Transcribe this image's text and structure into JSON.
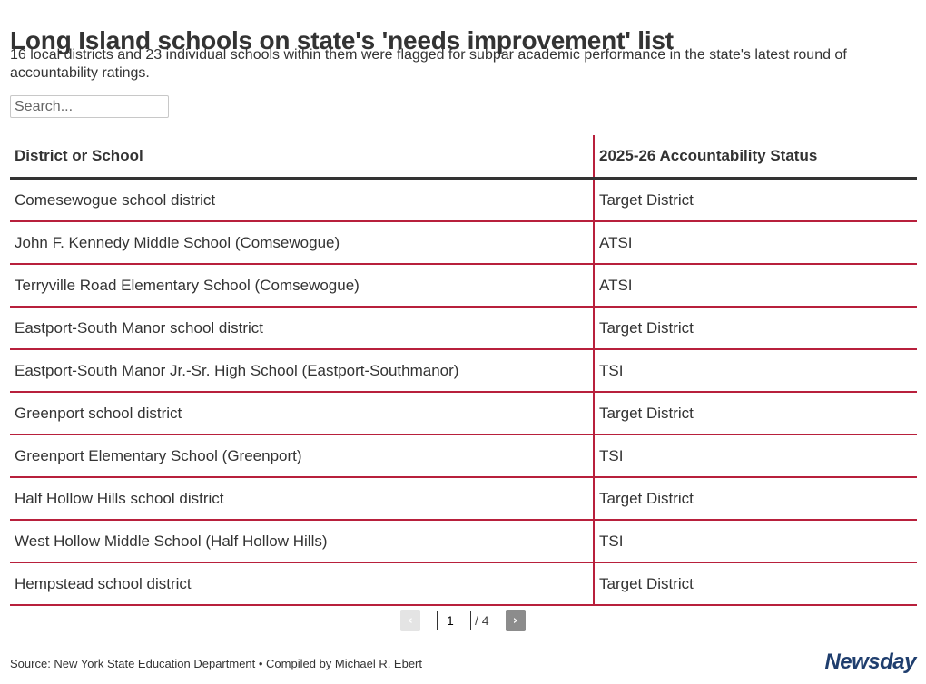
{
  "header": {
    "title": "Long Island schools on state's 'needs improvement' list",
    "subtitle": "16 local districts and 23 individual schools within them were flagged for subpar academic performance in the state's latest round of accountability ratings."
  },
  "search": {
    "placeholder": "Search...",
    "value": ""
  },
  "chart_data": {
    "type": "table",
    "columns": [
      "District or School",
      "2025-26 Accountability Status"
    ],
    "rows": [
      [
        "Comesewogue school district",
        "Target District"
      ],
      [
        "John F. Kennedy Middle School (Comsewogue)",
        "ATSI"
      ],
      [
        "Terryville Road Elementary School (Comsewogue)",
        "ATSI"
      ],
      [
        "Eastport-South Manor school district",
        "Target District"
      ],
      [
        "Eastport-South Manor Jr.-Sr. High School (Eastport-Southmanor)",
        "TSI"
      ],
      [
        "Greenport school district",
        "Target District"
      ],
      [
        "Greenport Elementary School (Greenport)",
        "TSI"
      ],
      [
        "Half Hollow Hills school district",
        "Target District"
      ],
      [
        "West Hollow Middle School (Half Hollow Hills)",
        "TSI"
      ],
      [
        "Hempstead school district",
        "Target District"
      ]
    ]
  },
  "pagination": {
    "prev_icon": "‹",
    "next_icon": "›",
    "current_page": "1",
    "total_label": "/ 4"
  },
  "footer": {
    "source": "Source: New York State Education Department • Compiled by Michael R. Ebert",
    "logo_text": "Newsday"
  },
  "colors": {
    "text": "#333333",
    "row_divider": "#b8203c",
    "header_rule": "#333333",
    "logo": "#1f3e6e"
  }
}
